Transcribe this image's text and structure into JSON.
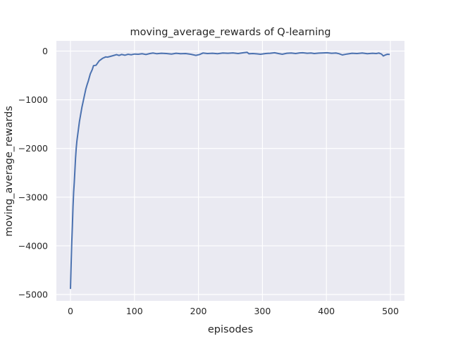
{
  "chart_data": {
    "type": "line",
    "title": "moving_average_rewards of Q-learning",
    "xlabel": "episodes",
    "ylabel": "moving_average_rewards",
    "xlim": [
      -22,
      522
    ],
    "ylim": [
      -5130,
      210
    ],
    "xticks": [
      0,
      100,
      200,
      300,
      400,
      500
    ],
    "xtick_labels": [
      "0",
      "100",
      "200",
      "300",
      "400",
      "500"
    ],
    "yticks": [
      0,
      -1000,
      -2000,
      -3000,
      -4000,
      -5000
    ],
    "ytick_labels": [
      "0",
      "−1000",
      "−2000",
      "−3000",
      "−4000",
      "−5000"
    ],
    "grid": true,
    "background_color": "#eaeaf2",
    "line_color": "#4c72b0",
    "series": [
      {
        "x": [
          0,
          1,
          2,
          3,
          4,
          5,
          6,
          7,
          8,
          9,
          10,
          12,
          14,
          16,
          18,
          20,
          22,
          24,
          26,
          28,
          31,
          34,
          36,
          40,
          45,
          50,
          55,
          58,
          62,
          66,
          72,
          76,
          80,
          85,
          90,
          95,
          100,
          106,
          112,
          118,
          124,
          129,
          135,
          142,
          150,
          158,
          165,
          172,
          180,
          188,
          196,
          202,
          207,
          214,
          222,
          230,
          238,
          246,
          254,
          262,
          270,
          276,
          279,
          285,
          292,
          297,
          305,
          312,
          319,
          325,
          331,
          338,
          345,
          352,
          358,
          363,
          370,
          376,
          381,
          388,
          395,
          401,
          408,
          415,
          420,
          425,
          432,
          440,
          448,
          456,
          464,
          472,
          478,
          482,
          486,
          489,
          492,
          495,
          499
        ],
        "y": [
          -4885,
          -4400,
          -3950,
          -3600,
          -3200,
          -2900,
          -2700,
          -2450,
          -2200,
          -1990,
          -1850,
          -1650,
          -1450,
          -1300,
          -1150,
          -1030,
          -900,
          -780,
          -690,
          -610,
          -470,
          -380,
          -300,
          -290,
          -200,
          -150,
          -120,
          -125,
          -110,
          -95,
          -72,
          -90,
          -70,
          -85,
          -65,
          -75,
          -60,
          -65,
          -55,
          -70,
          -50,
          -40,
          -55,
          -45,
          -50,
          -60,
          -45,
          -55,
          -50,
          -65,
          -88,
          -70,
          -40,
          -50,
          -45,
          -55,
          -40,
          -45,
          -38,
          -50,
          -35,
          -25,
          -55,
          -50,
          -58,
          -65,
          -50,
          -45,
          -35,
          -50,
          -65,
          -45,
          -40,
          -50,
          -38,
          -35,
          -45,
          -40,
          -50,
          -42,
          -38,
          -35,
          -45,
          -40,
          -55,
          -80,
          -60,
          -45,
          -50,
          -40,
          -55,
          -45,
          -50,
          -40,
          -60,
          -100,
          -80,
          -65,
          -70
        ]
      }
    ]
  }
}
